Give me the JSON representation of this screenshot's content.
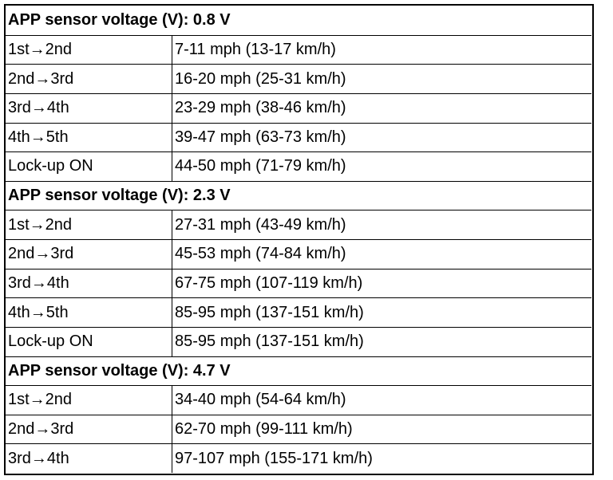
{
  "sections": [
    {
      "heading": "APP sensor voltage (V): 0.8 V",
      "rows": [
        [
          "1st→2nd",
          "7-11 mph (13-17 km/h)"
        ],
        [
          "2nd→3rd",
          "16-20 mph (25-31 km/h)"
        ],
        [
          "3rd→4th",
          "23-29 mph (38-46 km/h)"
        ],
        [
          "4th→5th",
          "39-47 mph (63-73 km/h)"
        ],
        [
          "Lock-up ON",
          "44-50 mph (71-79 km/h)"
        ]
      ]
    },
    {
      "heading": "APP sensor voltage (V): 2.3 V",
      "rows": [
        [
          "1st→2nd",
          "27-31 mph (43-49 km/h)"
        ],
        [
          "2nd→3rd",
          "45-53 mph (74-84 km/h)"
        ],
        [
          "3rd→4th",
          "67-75 mph (107-119 km/h)"
        ],
        [
          "4th→5th",
          "85-95 mph (137-151 km/h)"
        ],
        [
          "Lock-up ON",
          "85-95 mph (137-151 km/h)"
        ]
      ]
    },
    {
      "heading": "APP sensor voltage (V): 4.7 V",
      "rows": [
        [
          "1st→2nd",
          "34-40 mph (54-64 km/h)"
        ],
        [
          "2nd→3rd",
          "62-70 mph (99-111 km/h)"
        ],
        [
          "3rd→4th",
          "97-107 mph (155-171 km/h)"
        ]
      ]
    }
  ]
}
